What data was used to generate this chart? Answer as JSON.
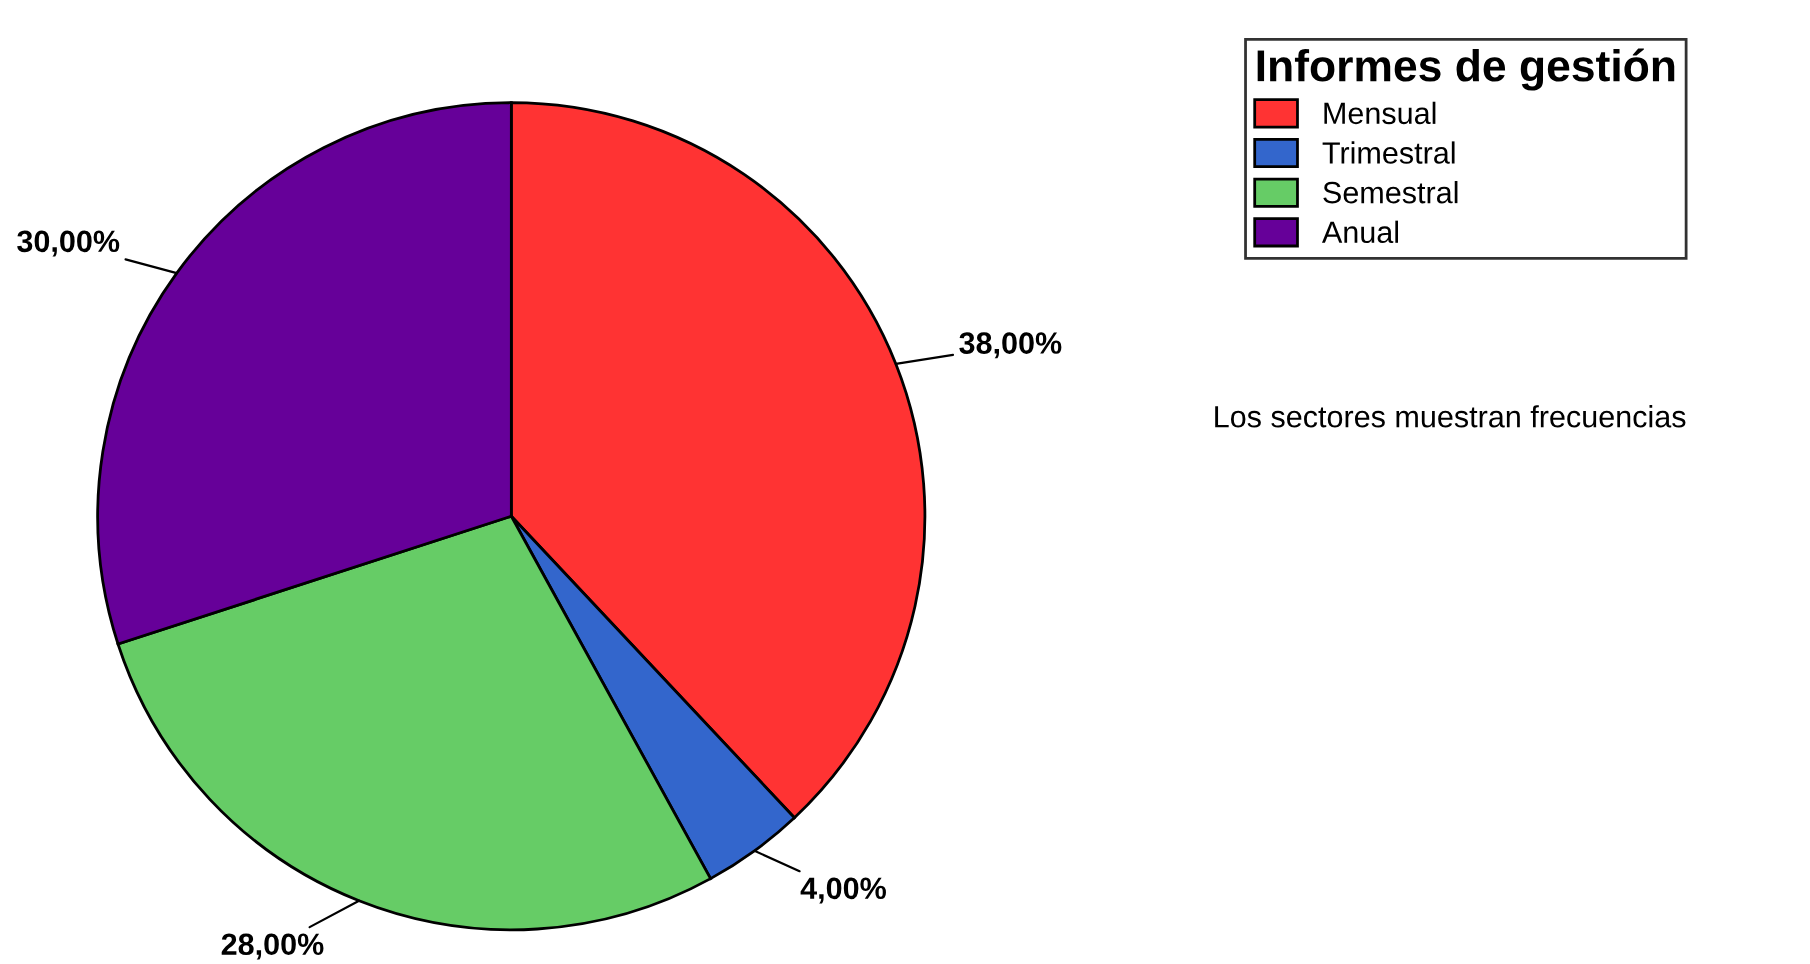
{
  "chart_data": {
    "type": "pie",
    "legend_title": "Informes de gestión",
    "categories": [
      "Mensual",
      "Trimestral",
      "Semestral",
      "Anual"
    ],
    "values": [
      38,
      4,
      28,
      30
    ],
    "colors": [
      "#ff3333",
      "#3366cc",
      "#66cc66",
      "#660099"
    ],
    "value_labels": [
      "38,00%",
      "4,00%",
      "28,00%",
      "30,00%"
    ],
    "legend": "top right",
    "annotations": [
      "Los sectores muestran frecuencias"
    ]
  }
}
